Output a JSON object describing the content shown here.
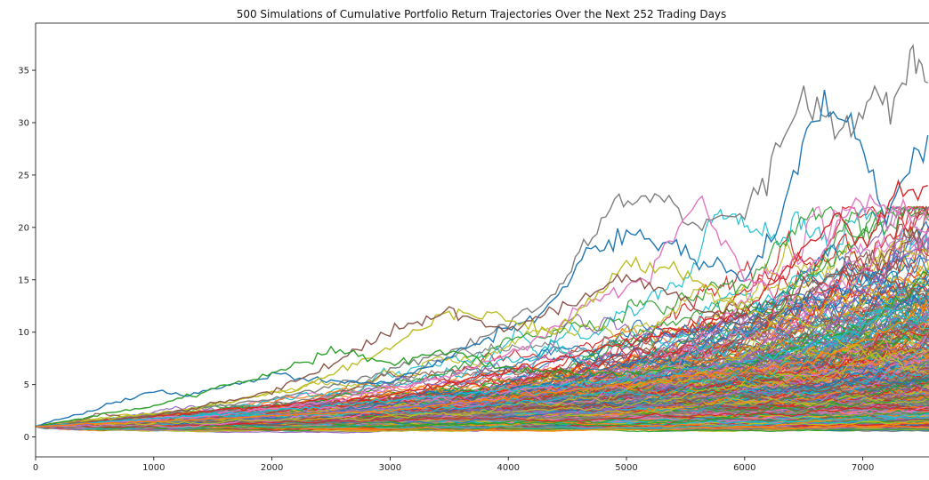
{
  "chart_data": {
    "type": "line",
    "title": "500 Simulations of Cumulative Portfolio Return Trajectories Over the Next 252 Trading Days",
    "xlabel": "",
    "ylabel": "",
    "xlim": [
      0,
      7560
    ],
    "ylim": [
      -1.9,
      39.5
    ],
    "x_ticks": [
      0,
      1000,
      2000,
      3000,
      4000,
      5000,
      6000,
      7000
    ],
    "y_ticks": [
      0,
      5,
      10,
      15,
      20,
      25,
      30,
      35
    ],
    "grid": false,
    "legend": "none",
    "n_series": 500,
    "start_value": 1.0,
    "palette": [
      "#1f77b4",
      "#ff7f0e",
      "#2ca02c",
      "#d62728",
      "#9467bd",
      "#8c564b",
      "#e377c2",
      "#7f7f7f",
      "#bcbd22",
      "#17becf"
    ],
    "highlighted_series": [
      {
        "color": "#7f7f7f",
        "points": [
          [
            0,
            1
          ],
          [
            1000,
            2.2
          ],
          [
            2000,
            3.6
          ],
          [
            3000,
            6.3
          ],
          [
            3600,
            8.5
          ],
          [
            4400,
            13.5
          ],
          [
            4600,
            17.6
          ],
          [
            4900,
            22.4
          ],
          [
            5200,
            22.9
          ],
          [
            5600,
            20.5
          ],
          [
            6000,
            21.4
          ],
          [
            6300,
            27.5
          ],
          [
            6500,
            32.9
          ],
          [
            6800,
            29.5
          ],
          [
            7000,
            31.2
          ],
          [
            7200,
            32.3
          ],
          [
            7400,
            35.7
          ],
          [
            7550,
            33.8
          ]
        ]
      },
      {
        "color": "#1f77b4",
        "points": [
          [
            0,
            1
          ],
          [
            1000,
            4.3
          ],
          [
            1300,
            3.9
          ],
          [
            2000,
            6.0
          ],
          [
            2500,
            5.3
          ],
          [
            3000,
            5.2
          ],
          [
            3600,
            8.2
          ],
          [
            4300,
            12.0
          ],
          [
            4700,
            17.5
          ],
          [
            5000,
            19.7
          ],
          [
            5500,
            17.6
          ],
          [
            6000,
            15.5
          ],
          [
            6300,
            20.5
          ],
          [
            6600,
            31.7
          ],
          [
            6900,
            30.7
          ],
          [
            7200,
            21.0
          ],
          [
            7550,
            28.8
          ]
        ]
      },
      {
        "color": "#d62728",
        "points": [
          [
            0,
            1
          ],
          [
            1000,
            2.0
          ],
          [
            2000,
            3.0
          ],
          [
            3000,
            4.0
          ],
          [
            4000,
            6.3
          ],
          [
            5000,
            9.0
          ],
          [
            5600,
            10.5
          ],
          [
            6000,
            12.0
          ],
          [
            6400,
            16.5
          ],
          [
            6800,
            21.2
          ],
          [
            7000,
            18.0
          ],
          [
            7300,
            23.4
          ],
          [
            7550,
            24.0
          ]
        ]
      },
      {
        "color": "#e377c2",
        "points": [
          [
            0,
            1
          ],
          [
            1500,
            2.0
          ],
          [
            2500,
            3.4
          ],
          [
            3500,
            5.8
          ],
          [
            4200,
            9.0
          ],
          [
            4700,
            13.0
          ],
          [
            5200,
            15.5
          ],
          [
            5600,
            22.5
          ],
          [
            6000,
            15.5
          ],
          [
            6400,
            12.8
          ],
          [
            6900,
            22.3
          ],
          [
            7300,
            21.5
          ],
          [
            7550,
            19.5
          ]
        ]
      },
      {
        "color": "#bcbd22",
        "points": [
          [
            0,
            1
          ],
          [
            1200,
            2.5
          ],
          [
            2200,
            4.5
          ],
          [
            3000,
            8.5
          ],
          [
            3500,
            12.0
          ],
          [
            3900,
            11.5
          ],
          [
            4400,
            9.8
          ],
          [
            5000,
            16.5
          ],
          [
            5400,
            16.0
          ],
          [
            6000,
            12.0
          ],
          [
            6500,
            11.0
          ],
          [
            7000,
            8.2
          ],
          [
            7550,
            6.0
          ]
        ]
      },
      {
        "color": "#8c564b",
        "points": [
          [
            0,
            1
          ],
          [
            1000,
            2.0
          ],
          [
            2000,
            4.3
          ],
          [
            2600,
            7.5
          ],
          [
            3000,
            10.1
          ],
          [
            3500,
            12.0
          ],
          [
            4000,
            10.0
          ],
          [
            4500,
            12.5
          ],
          [
            5000,
            15.2
          ],
          [
            5500,
            13.0
          ],
          [
            6000,
            10.5
          ],
          [
            6500,
            14.5
          ],
          [
            7000,
            16.0
          ],
          [
            7550,
            13.0
          ]
        ]
      },
      {
        "color": "#2ca02c",
        "points": [
          [
            0,
            1
          ],
          [
            1000,
            3.0
          ],
          [
            2000,
            6.0
          ],
          [
            2500,
            8.2
          ],
          [
            3000,
            7.0
          ],
          [
            3500,
            8.3
          ],
          [
            4000,
            6.5
          ],
          [
            5000,
            6.0
          ],
          [
            6000,
            7.0
          ],
          [
            7000,
            10.5
          ],
          [
            7550,
            15.5
          ]
        ]
      },
      {
        "color": "#17becf",
        "points": [
          [
            0,
            1
          ],
          [
            2000,
            2.5
          ],
          [
            4000,
            4.5
          ],
          [
            5000,
            5.5
          ],
          [
            6000,
            7.2
          ],
          [
            6800,
            9.5
          ],
          [
            7200,
            12.0
          ],
          [
            7550,
            11.0
          ]
        ]
      },
      {
        "color": "#9467bd",
        "points": [
          [
            0,
            1
          ],
          [
            2000,
            2.0
          ],
          [
            4000,
            3.5
          ],
          [
            5500,
            6.5
          ],
          [
            6500,
            8.0
          ],
          [
            7200,
            16.0
          ],
          [
            7550,
            19.0
          ]
        ]
      },
      {
        "color": "#ff7f0e",
        "points": [
          [
            0,
            1
          ],
          [
            3000,
            2.5
          ],
          [
            5000,
            5.0
          ],
          [
            6500,
            7.0
          ],
          [
            7100,
            9.5
          ],
          [
            7550,
            12.5
          ]
        ]
      }
    ]
  }
}
